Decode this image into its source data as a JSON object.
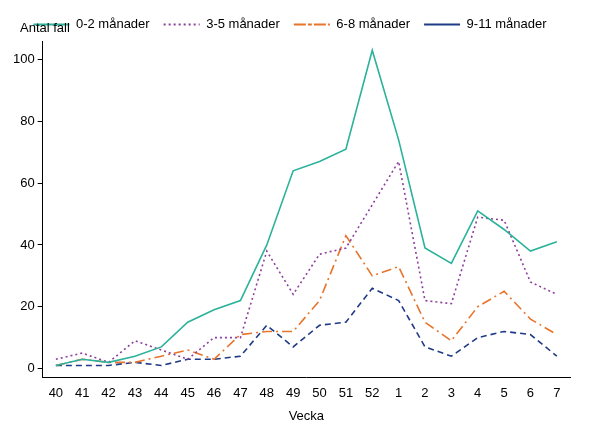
{
  "chart_data": {
    "type": "line",
    "y_label": "Antal fall",
    "x_label": "Vecka",
    "categories": [
      "40",
      "41",
      "42",
      "43",
      "44",
      "45",
      "46",
      "47",
      "48",
      "49",
      "50",
      "51",
      "52",
      "1",
      "2",
      "3",
      "4",
      "5",
      "6",
      "7"
    ],
    "series": [
      {
        "name": "0-2 månader",
        "color": "#2bb29a",
        "line_style": "solid",
        "values": [
          1,
          3,
          2,
          4,
          7,
          15,
          19,
          22,
          40,
          64,
          67,
          71,
          103,
          74,
          39,
          34,
          51,
          45,
          38,
          41
        ]
      },
      {
        "name": "3-5 månader",
        "color": "#8e3f9e",
        "line_style": "dotted",
        "values": [
          3,
          5,
          2,
          9,
          6,
          3,
          10,
          10,
          38,
          24,
          37,
          39,
          53,
          67,
          22,
          21,
          49,
          48,
          28,
          24
        ]
      },
      {
        "name": "6-8 månader",
        "color": "#e8742c",
        "line_style": "dashdot",
        "values": [
          1,
          3,
          2,
          2,
          4,
          6,
          3,
          11,
          12,
          12,
          22,
          43,
          30,
          33,
          15,
          9,
          20,
          25,
          16,
          11
        ]
      },
      {
        "name": "9-11 månader",
        "color": "#1f3a86",
        "line_style": "dashed",
        "values": [
          1,
          1,
          1,
          2,
          1,
          3,
          3,
          4,
          14,
          7,
          14,
          15,
          26,
          22,
          7,
          4,
          10,
          12,
          11,
          4
        ]
      }
    ],
    "ylim": [
      -3,
      106
    ],
    "yticks": [
      0,
      20,
      40,
      60,
      80,
      100
    ],
    "grid": false,
    "legend": "top"
  }
}
